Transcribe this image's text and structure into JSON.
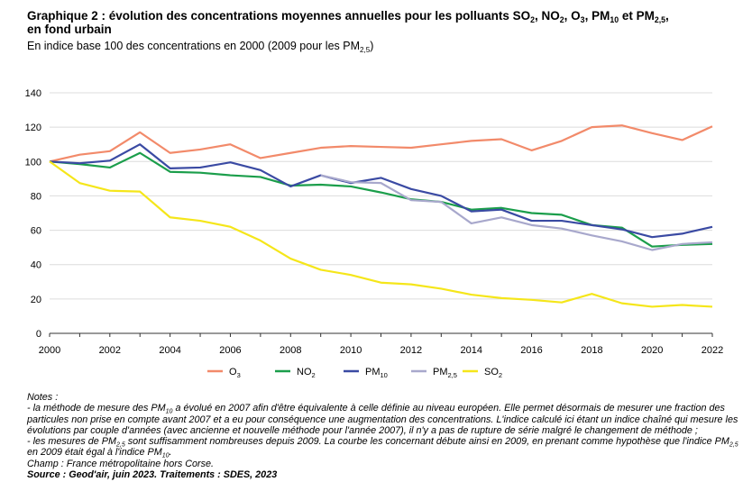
{
  "title": {
    "prefix": "Graphique 2 : évolution des concentrations moyennes annuelles pour les polluants SO",
    "sub_so2": "2",
    "t1": ", NO",
    "sub_no2": "2",
    "t2": ", O",
    "sub_o3": "3",
    "t3": ", PM",
    "sub_pm10": "10",
    "t4": " et PM",
    "sub_pm25": "2,5",
    "t5": ",",
    "line2": "en fond urbain"
  },
  "subtitle": {
    "text": "En indice base 100 des concentrations en 2000 (2009 pour les PM",
    "sub": "2,5",
    "end": ")"
  },
  "chart_data": {
    "type": "line",
    "x": [
      2000,
      2001,
      2002,
      2003,
      2004,
      2005,
      2006,
      2007,
      2008,
      2009,
      2010,
      2011,
      2012,
      2013,
      2014,
      2015,
      2016,
      2017,
      2018,
      2019,
      2020,
      2021,
      2022
    ],
    "x_ticks": [
      "2000",
      "2002",
      "2004",
      "2006",
      "2008",
      "2010",
      "2012",
      "2014",
      "2016",
      "2018",
      "2020",
      "2022"
    ],
    "y_ticks": [
      "0",
      "20",
      "40",
      "60",
      "80",
      "100",
      "120",
      "140"
    ],
    "ylim": [
      0,
      140
    ],
    "grid": "horizontal",
    "legend_position": "bottom",
    "series": [
      {
        "name": "O",
        "sub": "3",
        "color": "#f28a6a",
        "values": [
          100,
          104,
          106,
          117,
          105,
          107,
          110,
          102,
          105,
          108,
          109,
          108.5,
          108,
          110,
          112,
          113,
          106.5,
          112,
          120,
          121,
          116.5,
          112.5,
          120.5
        ]
      },
      {
        "name": "NO",
        "sub": "2",
        "color": "#1b9e4b",
        "values": [
          100,
          98.5,
          96.5,
          105,
          94,
          93.5,
          92,
          91,
          86,
          86.5,
          85.5,
          82,
          78,
          76.5,
          72,
          73,
          70,
          69,
          63,
          61.5,
          50.5,
          51.5,
          52
        ]
      },
      {
        "name": "PM",
        "sub": "10",
        "color": "#3a4aa3",
        "values": [
          100,
          99,
          100.5,
          110,
          96,
          96.5,
          99.5,
          95,
          85.5,
          92,
          87.5,
          90.5,
          84,
          80,
          71,
          72,
          65.5,
          65.5,
          63,
          60.5,
          56,
          58,
          62
        ]
      },
      {
        "name": "PM",
        "sub": "2,5",
        "color": "#a8a8cc",
        "values": [
          null,
          null,
          null,
          null,
          null,
          null,
          null,
          null,
          null,
          92,
          88,
          87.5,
          77.5,
          76.5,
          64,
          67.5,
          63,
          61,
          57,
          53.5,
          48.5,
          52,
          53
        ]
      },
      {
        "name": "SO",
        "sub": "2",
        "color": "#f5e61a",
        "values": [
          100,
          87.5,
          83,
          82.5,
          67.5,
          65.5,
          62,
          54,
          43.5,
          37,
          34,
          29.5,
          28.5,
          26,
          22.5,
          20.5,
          19.5,
          18,
          23,
          17.5,
          15.5,
          16.5,
          15.5
        ]
      }
    ]
  },
  "notes": {
    "heading": "Notes :",
    "n1a": "- la méthode de mesure des PM",
    "n1_sub": "10",
    "n1b": " a évolué en 2007 afin d'être équivalente à celle définie au niveau européen. Elle permet désormais de mesurer une fraction des particules non prise en compte avant 2007 et a eu pour conséquence une augmentation des concentrations. L'indice calculé ici étant un indice chaîné qui mesure les évolutions par couple d'années (avec ancienne et nouvelle méthode pour l'année 2007), il n'y a pas de rupture de série malgré le changement de méthode ;",
    "n2a": "- les mesures de PM",
    "n2_sub": "2,5",
    "n2b": " sont suffisamment nombreuses depuis 2009. La courbe les concernant débute ainsi en 2009, en prenant comme hypothèse que l'indice PM",
    "n2_sub2": "2,5",
    "n2c": " en 2009 était égal à l'indice PM",
    "n2_sub3": "10",
    "n2d": ".",
    "champ": "Champ : France métropolitaine hors Corse.",
    "source": "Source : Geod'air, juin 2023. Traitements : SDES, 2023"
  }
}
